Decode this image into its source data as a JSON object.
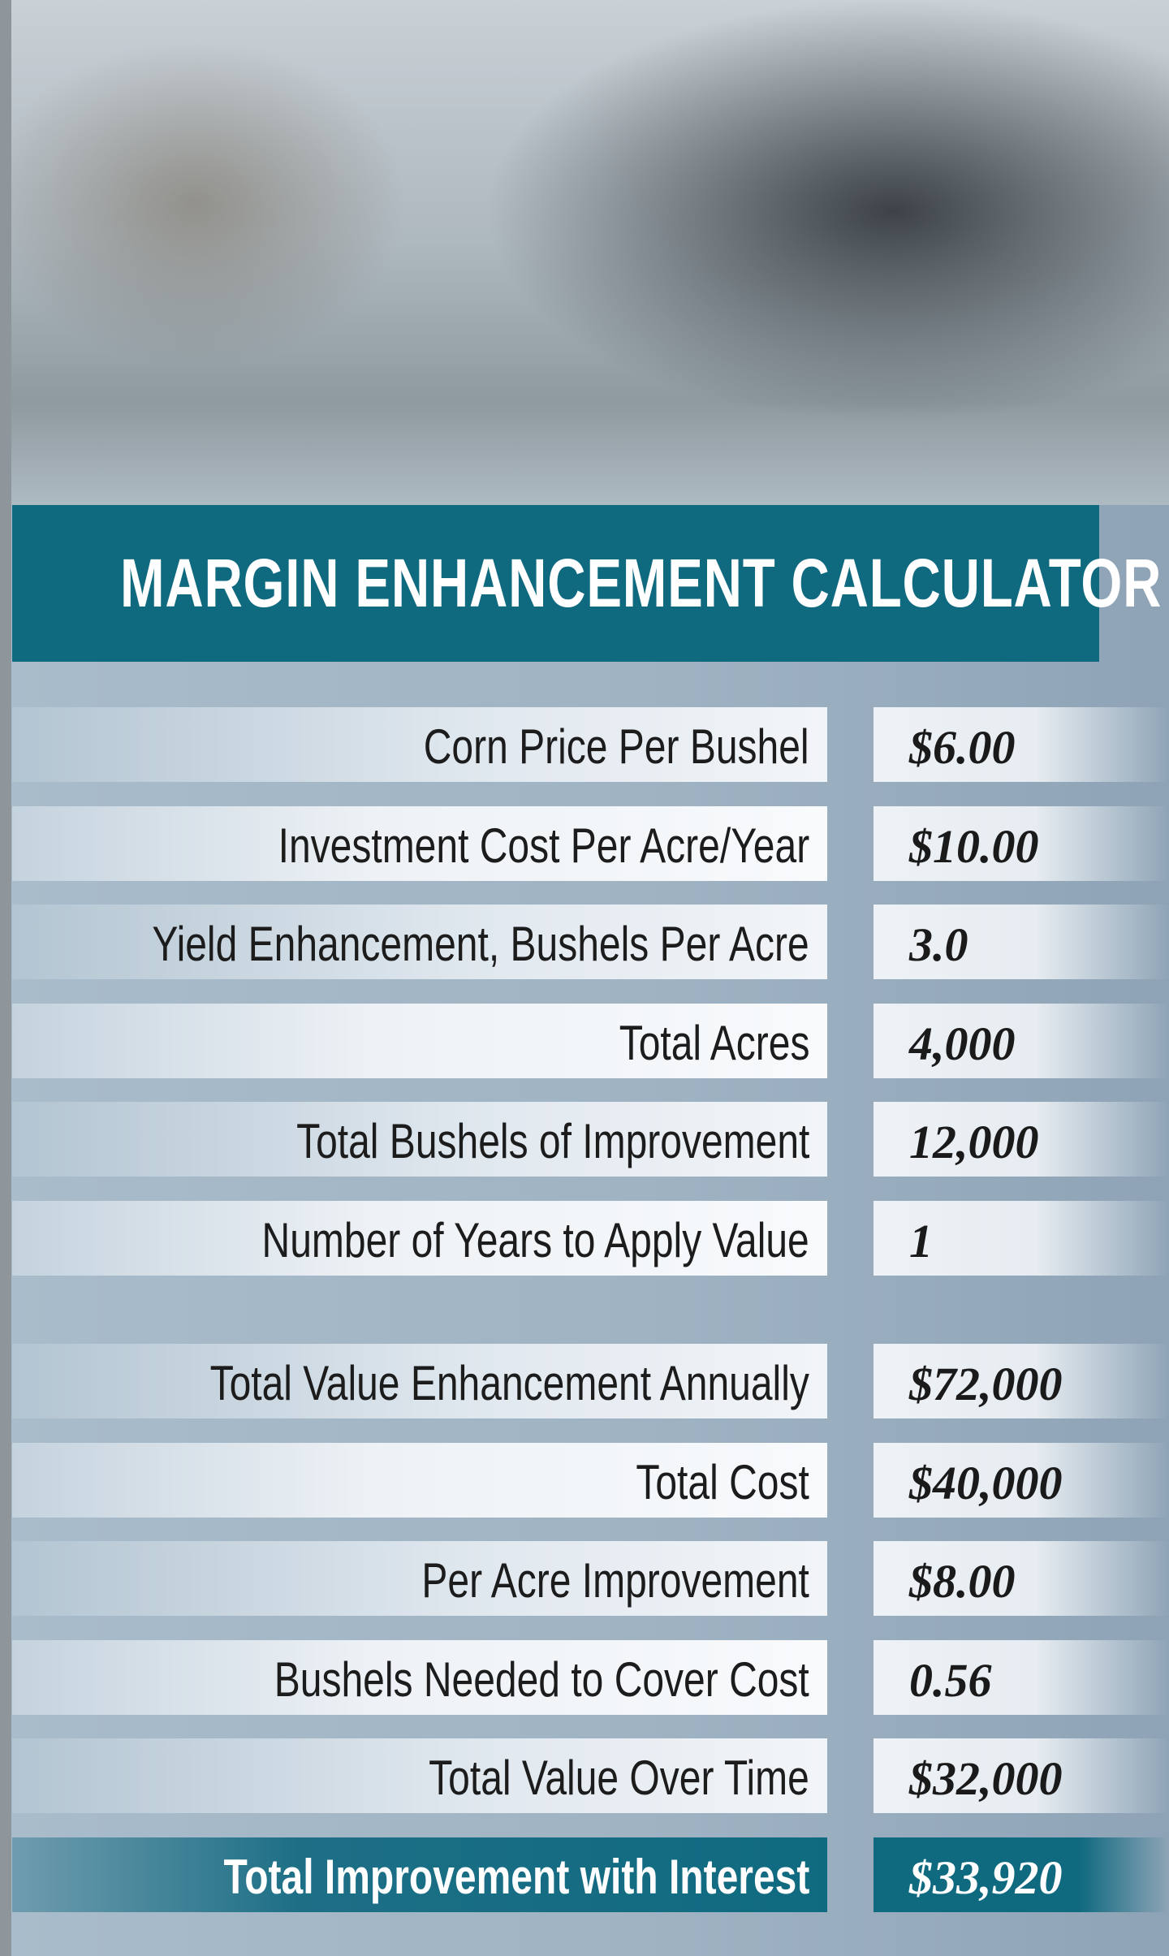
{
  "title": "MARGIN ENHANCEMENT CALCULATOR",
  "inputs": [
    {
      "label": "Corn Price Per Bushel",
      "value": "$6.00"
    },
    {
      "label": "Investment Cost Per Acre/Year",
      "value": "$10.00"
    },
    {
      "label": "Yield Enhancement, Bushels Per Acre",
      "value": "3.0"
    },
    {
      "label": "Total Acres",
      "value": "4,000"
    },
    {
      "label": "Total Bushels of Improvement",
      "value": "12,000"
    },
    {
      "label": "Number of Years to Apply Value",
      "value": "1"
    }
  ],
  "results": [
    {
      "label": "Total Value Enhancement Annually",
      "value": "$72,000"
    },
    {
      "label": "Total Cost",
      "value": "$40,000"
    },
    {
      "label": "Per Acre Improvement",
      "value": "$8.00"
    },
    {
      "label": "Bushels Needed to Cover Cost",
      "value": "0.56"
    },
    {
      "label": "Total Value Over Time",
      "value": "$32,000"
    },
    {
      "label": "Total Improvement with Interest",
      "value": "$33,920"
    }
  ]
}
